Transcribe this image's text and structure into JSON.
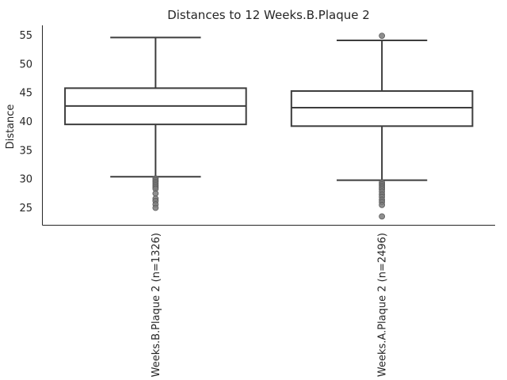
{
  "chart_data": {
    "type": "box",
    "title": "Distances to 12 Weeks.B.Plaque 2",
    "xlabel": "",
    "ylabel": "Distance",
    "ylim": [
      22,
      56.5
    ],
    "yticks": [
      25,
      30,
      35,
      40,
      45,
      50,
      55
    ],
    "grid": false,
    "boxes": [
      {
        "label": "12 Weeks.B.Plaque 2 (n=1326)",
        "whisker_low": 30.4,
        "q1": 39.5,
        "median": 42.7,
        "q3": 45.8,
        "whisker_high": 54.6,
        "fliers": [
          30.1,
          29.8,
          29.5,
          29.2,
          28.9,
          28.6,
          28.3,
          27.5,
          26.6,
          26.2,
          25.6,
          25.0
        ]
      },
      {
        "label": "12 Weeks.A.Plaque 2 (n=2496)",
        "whisker_low": 29.8,
        "q1": 39.2,
        "median": 42.4,
        "q3": 45.3,
        "whisker_high": 54.1,
        "fliers": [
          54.9,
          29.4,
          29.1,
          28.8,
          28.5,
          28.2,
          27.8,
          27.3,
          26.9,
          26.4,
          26.0,
          25.5,
          23.5
        ]
      }
    ]
  }
}
